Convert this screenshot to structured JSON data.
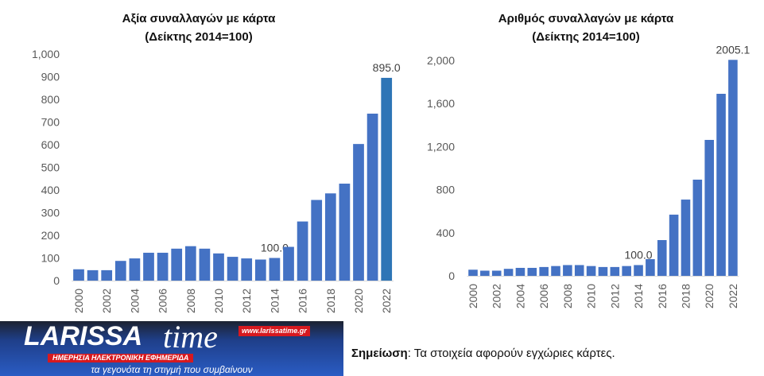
{
  "chart_data": [
    {
      "type": "bar",
      "title": [
        "Αξία συναλλαγών με κάρτα",
        "(Δείκτης 2014=100)"
      ],
      "categories": [
        "2000",
        "2001",
        "2002",
        "2003",
        "2004",
        "2005",
        "2006",
        "2007",
        "2008",
        "2009",
        "2010",
        "2011",
        "2012",
        "2013",
        "2014",
        "2015",
        "2016",
        "2017",
        "2018",
        "2019",
        "2020",
        "2021",
        "2022"
      ],
      "xtick_labels": [
        "2000",
        "2002",
        "2004",
        "2006",
        "2008",
        "2010",
        "2012",
        "2014",
        "2016",
        "2018",
        "2020",
        "2022"
      ],
      "values": [
        50,
        46,
        46,
        87,
        98,
        123,
        123,
        141,
        152,
        141,
        120,
        105,
        98,
        93,
        100,
        149,
        261,
        356,
        385,
        428,
        603,
        737,
        895
      ],
      "data_labels": {
        "2014": "100.0",
        "2022": "895.0"
      },
      "ylim": [
        0,
        1000
      ],
      "yticks": [
        "0",
        "100",
        "200",
        "300",
        "400",
        "500",
        "600",
        "700",
        "800",
        "900",
        "1,000"
      ],
      "ytick_values": [
        0,
        100,
        200,
        300,
        400,
        500,
        600,
        700,
        800,
        900,
        1000
      ],
      "grid": false,
      "color": "#4472C4",
      "last_bar_color": "#2E75B6"
    },
    {
      "type": "bar",
      "title": [
        "Αριθμός συναλλαγών με κάρτα",
        "(Δείκτης 2014=100)"
      ],
      "categories": [
        "2000",
        "2001",
        "2002",
        "2003",
        "2004",
        "2005",
        "2006",
        "2007",
        "2008",
        "2009",
        "2010",
        "2011",
        "2012",
        "2013",
        "2014",
        "2015",
        "2016",
        "2017",
        "2018",
        "2019",
        "2020",
        "2021",
        "2022"
      ],
      "xtick_labels": [
        "2000",
        "2002",
        "2004",
        "2006",
        "2008",
        "2010",
        "2012",
        "2014",
        "2016",
        "2018",
        "2020",
        "2022"
      ],
      "values": [
        57,
        48,
        48,
        65,
        74,
        74,
        82,
        91,
        100,
        100,
        91,
        82,
        82,
        91,
        100,
        155,
        332,
        568,
        708,
        893,
        1262,
        1690,
        2005.1
      ],
      "data_labels": {
        "2014": "100.0",
        "2022": "2005.1"
      },
      "ylim": [
        0,
        2000
      ],
      "yticks": [
        "0",
        "400",
        "800",
        "1,200",
        "1,600",
        "2,000"
      ],
      "ytick_values": [
        0,
        400,
        800,
        1200,
        1600,
        2000
      ],
      "grid": false,
      "color": "#4472C4"
    }
  ],
  "note": {
    "label": "Σημείωση",
    "text": ": Τα στοιχεία αφορούν εγχώριες κάρτες."
  },
  "logo": {
    "name": "LARISSA",
    "name2": "time",
    "url": "www.larissatime.gr",
    "subtitle": "ΗΜΕΡΗΣΙΑ ΗΛΕΚΤΡΟΝΙΚΗ ΕΦΗΜΕΡΙΔΑ",
    "slogan": "τα γεγονότα τη στιγμή που συμβαίνουν"
  }
}
